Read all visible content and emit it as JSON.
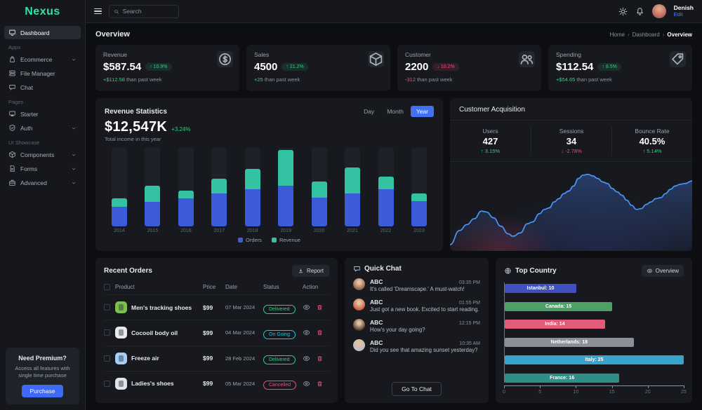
{
  "brand": {
    "logo": "Nexus"
  },
  "topbar": {
    "search_placeholder": "Search",
    "user_name": "Denish",
    "user_edit": "Edit"
  },
  "sidebar": {
    "sections": [
      {
        "label": "",
        "items": [
          {
            "label": "Dashboard",
            "icon": "dashboard-icon",
            "active": true,
            "chevron": false
          }
        ]
      },
      {
        "label": "Apps",
        "items": [
          {
            "label": "Ecommerce",
            "icon": "ecommerce-icon",
            "active": false,
            "chevron": true
          },
          {
            "label": "File Manager",
            "icon": "file-manager-icon",
            "active": false,
            "chevron": false
          },
          {
            "label": "Chat",
            "icon": "chat-icon",
            "active": false,
            "chevron": false
          }
        ]
      },
      {
        "label": "Pages",
        "items": [
          {
            "label": "Starter",
            "icon": "starter-icon",
            "active": false,
            "chevron": false
          },
          {
            "label": "Auth",
            "icon": "auth-icon",
            "active": false,
            "chevron": true
          }
        ]
      },
      {
        "label": "UI Showcase",
        "items": [
          {
            "label": "Components",
            "icon": "components-icon",
            "active": false,
            "chevron": true
          },
          {
            "label": "Forms",
            "icon": "forms-icon",
            "active": false,
            "chevron": true
          },
          {
            "label": "Advanced",
            "icon": "advanced-icon",
            "active": false,
            "chevron": true
          }
        ]
      }
    ],
    "premium": {
      "title": "Need Premium?",
      "description": "Access all features with single time purchase",
      "button": "Purchase"
    }
  },
  "page": {
    "title": "Overview",
    "breadcrumb": [
      "Home",
      "Dashboard",
      "Overview"
    ]
  },
  "stat_cards": [
    {
      "label": "Revenue",
      "value": "$587.54",
      "delta": "10.9%",
      "direction": "up",
      "sub_value": "+$112.58",
      "sub_color": "#2fd181",
      "sub_text": "than past week",
      "icon": "dollar-icon"
    },
    {
      "label": "Sales",
      "value": "4500",
      "delta": "21.2%",
      "direction": "up",
      "sub_value": "+25",
      "sub_color": "#2fd181",
      "sub_text": "than past week",
      "icon": "package-icon"
    },
    {
      "label": "Customer",
      "value": "2200",
      "delta": "10.2%",
      "direction": "down",
      "sub_value": "-312",
      "sub_color": "#f14f77",
      "sub_text": "than past week",
      "icon": "users-icon"
    },
    {
      "label": "Spending",
      "value": "$112.54",
      "delta": "8.5%",
      "direction": "up",
      "sub_value": "+$54.65",
      "sub_color": "#2fd181",
      "sub_text": "than past week",
      "icon": "tag-icon"
    }
  ],
  "revenue_statistics": {
    "title": "Revenue Statistics",
    "total": "$12,547K",
    "delta": "+3.24%",
    "subtitle": "Total income in this year",
    "range_options": [
      "Day",
      "Month",
      "Year"
    ],
    "active_range": "Year",
    "chart_data": {
      "type": "bar",
      "stacked": true,
      "categories": [
        "2014",
        "2015",
        "2016",
        "2017",
        "2018",
        "2019",
        "2020",
        "2021",
        "2022",
        "2023"
      ],
      "series": [
        {
          "name": "Orders",
          "color": "#3b5bd9",
          "values": [
            25,
            31,
            36,
            42,
            47,
            52,
            37,
            42,
            47,
            32
          ]
        },
        {
          "name": "Revenue",
          "color": "#34c3a2",
          "values": [
            11,
            21,
            10,
            19,
            26,
            45,
            20,
            33,
            16,
            10
          ]
        }
      ],
      "ylim": [
        0,
        100
      ],
      "legend_position": "bottom"
    }
  },
  "customer_acquisition": {
    "title": "Customer Acquisition",
    "metrics": [
      {
        "label": "Users",
        "value": "427",
        "delta": "3.15%",
        "direction": "up"
      },
      {
        "label": "Sessions",
        "value": "34",
        "delta": "-2.78%",
        "direction": "down"
      },
      {
        "label": "Bounce Rate",
        "value": "40.5%",
        "delta": "5.14%",
        "direction": "up"
      }
    ],
    "chart_data": {
      "type": "area",
      "line_color": "#4896f8",
      "points": [
        [
          0,
          97
        ],
        [
          4,
          80
        ],
        [
          7,
          73
        ],
        [
          10,
          66
        ],
        [
          13,
          57
        ],
        [
          15,
          58
        ],
        [
          18,
          65
        ],
        [
          21,
          75
        ],
        [
          24,
          84
        ],
        [
          26,
          87
        ],
        [
          29,
          83
        ],
        [
          32,
          72
        ],
        [
          34,
          70
        ],
        [
          37,
          60
        ],
        [
          39,
          55
        ],
        [
          41,
          53
        ],
        [
          43,
          46
        ],
        [
          45,
          42
        ],
        [
          47,
          36
        ],
        [
          49,
          33
        ],
        [
          51,
          27
        ],
        [
          53,
          18
        ],
        [
          55,
          14
        ],
        [
          57,
          13
        ],
        [
          59,
          15
        ],
        [
          61,
          18
        ],
        [
          63,
          22
        ],
        [
          65,
          24
        ],
        [
          67,
          30
        ],
        [
          69,
          34
        ],
        [
          71,
          38
        ],
        [
          73,
          44
        ],
        [
          75,
          50
        ],
        [
          77,
          55
        ],
        [
          79,
          54
        ],
        [
          81,
          49
        ],
        [
          83,
          46
        ],
        [
          85,
          42
        ],
        [
          87,
          41
        ],
        [
          89,
          36
        ],
        [
          91,
          31
        ],
        [
          93,
          27
        ],
        [
          95,
          25
        ],
        [
          97,
          24
        ],
        [
          100,
          21
        ]
      ]
    }
  },
  "recent_orders": {
    "title": "Recent Orders",
    "report_button": "Report",
    "columns": [
      "Product",
      "Price",
      "Date",
      "Status",
      "Action"
    ],
    "rows": [
      {
        "product": "Men's tracking shoes",
        "price": "$99",
        "date": "07 Mar 2024",
        "status": "Delivered",
        "status_color": "#2fd181",
        "thumb_color": "#7cc04b"
      },
      {
        "product": "Cocooil body oil",
        "price": "$99",
        "date": "04 Mar 2024",
        "status": "On Going",
        "status_color": "#22c3dd",
        "thumb_color": "#e9e9e9"
      },
      {
        "product": "Freeze air",
        "price": "$99",
        "date": "28 Feb 2024",
        "status": "Delivered",
        "status_color": "#2fd181",
        "thumb_color": "#a8cdf0"
      },
      {
        "product": "Ladies's shoes",
        "price": "$99",
        "date": "05 Mar 2024",
        "status": "Cancelled",
        "status_color": "#f14f77",
        "thumb_color": "#dde4ea"
      }
    ]
  },
  "quick_chat": {
    "title": "Quick Chat",
    "button": "Go To Chat",
    "messages": [
      {
        "name": "ABC",
        "time": "03:35 PM",
        "text": "It's called 'Dreamscape.' A must-watch!",
        "avatar_color": "#8a5a3b"
      },
      {
        "name": "ABC",
        "time": "01:55 PM",
        "text": "Just got a new book. Excited to start reading.",
        "avatar_color": "#c2563f"
      },
      {
        "name": "ABC",
        "time": "12:15 PM",
        "text": "How's your day going?",
        "avatar_color": "#4a3328"
      },
      {
        "name": "ABC",
        "time": "10:35 AM",
        "text": "Did you see that amazing sunset yesterday?",
        "avatar_color": "#b9bec4"
      }
    ]
  },
  "top_country": {
    "title": "Top Country",
    "overview_button": "Overview",
    "chart_data": {
      "type": "bar",
      "orientation": "horizontal",
      "xlim": [
        0,
        25
      ],
      "x_ticks": [
        0,
        5,
        10,
        15,
        20,
        25
      ],
      "bars": [
        {
          "label": "Istanbul: 10",
          "value": 10,
          "color": "#3f51c1"
        },
        {
          "label": "Canada: 15",
          "value": 15,
          "color": "#4da167"
        },
        {
          "label": "India: 14",
          "value": 14,
          "color": "#e25c77"
        },
        {
          "label": "Netherlands: 18",
          "value": 18,
          "color": "#8a8f98"
        },
        {
          "label": "Italy: 25",
          "value": 25,
          "color": "#38a3cc"
        },
        {
          "label": "France: 16",
          "value": 16,
          "color": "#2f8e87"
        }
      ]
    }
  }
}
